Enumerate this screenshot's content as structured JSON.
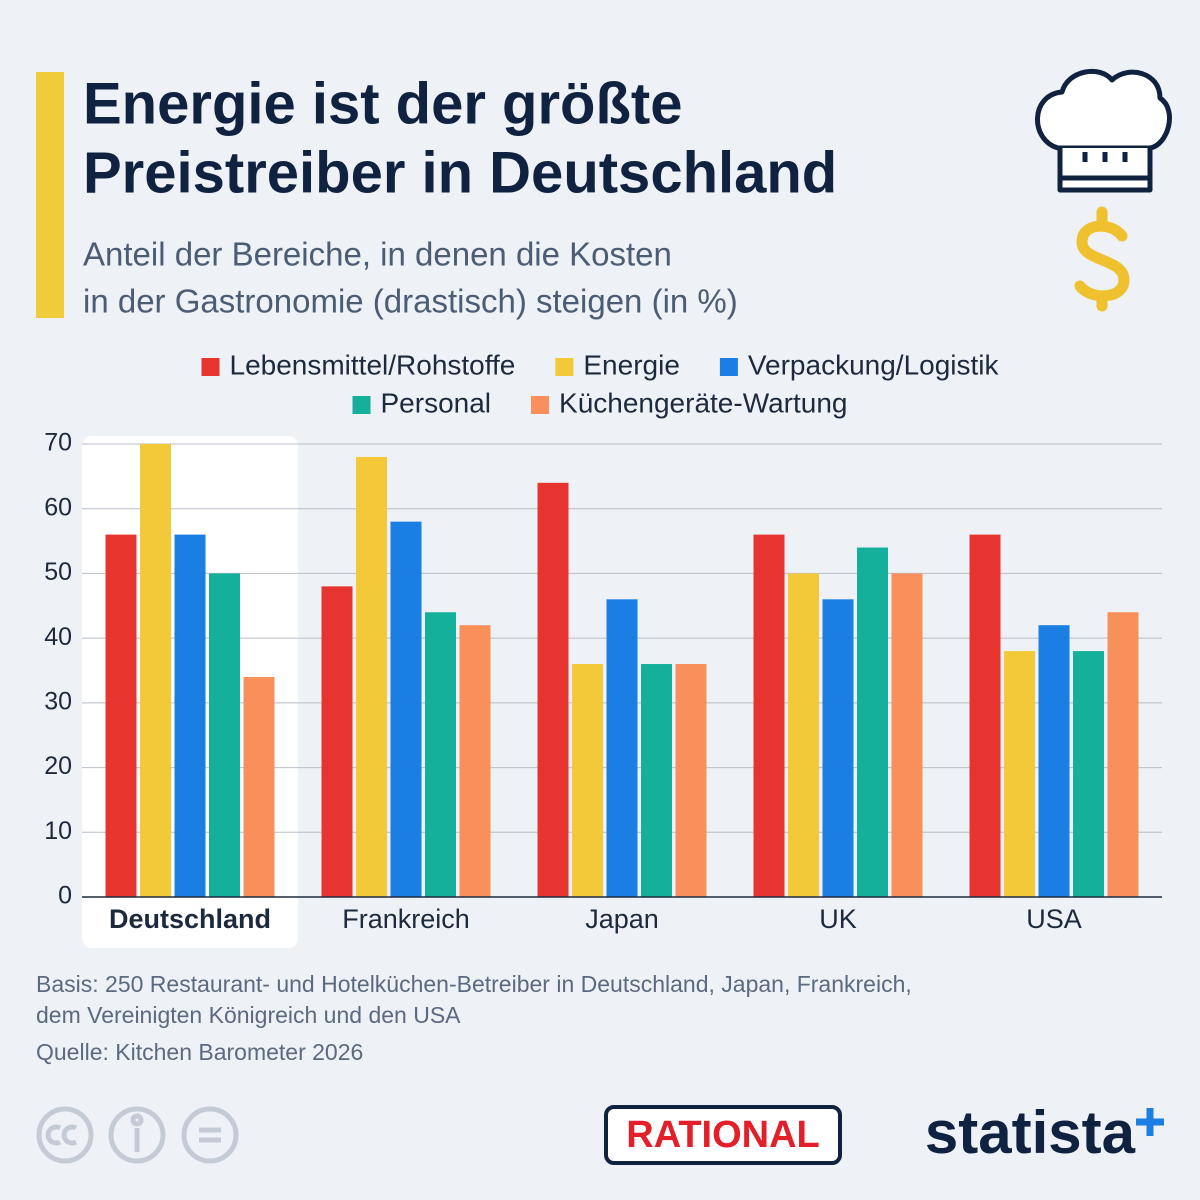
{
  "chart_data": {
    "type": "bar",
    "title": [
      "Energie ist der größte",
      "Preistreiber in Deutschland"
    ],
    "subtitle": [
      "Anteil der Bereiche, in denen die Kosten",
      "in der Gastronomie (drastisch) steigen (in %)"
    ],
    "categories": [
      "Deutschland",
      "Frankreich",
      "Japan",
      "UK",
      "USA"
    ],
    "highlight": "Deutschland",
    "series": [
      {
        "name": "Lebensmittel/Rohstoffe",
        "color": "#e8342e",
        "values": [
          56,
          48,
          64,
          56,
          56
        ]
      },
      {
        "name": "Energie",
        "color": "#f3c93a",
        "values": [
          70,
          68,
          36,
          50,
          38
        ]
      },
      {
        "name": "Verpackung/Logistik",
        "color": "#1a7ee2",
        "values": [
          56,
          58,
          46,
          46,
          42
        ]
      },
      {
        "name": "Personal",
        "color": "#15b09b",
        "values": [
          50,
          44,
          36,
          54,
          38
        ]
      },
      {
        "name": "Küchengeräte-Wartung",
        "color": "#f98f5b",
        "values": [
          34,
          42,
          36,
          50,
          44
        ]
      }
    ],
    "ylim": [
      0,
      70
    ],
    "yticks": [
      0,
      10,
      20,
      30,
      40,
      50,
      60,
      70
    ],
    "grid": true,
    "note": [
      "Basis: 250 Restaurant- und Hotelküchen-Betreiber in Deutschland, Japan, Frankreich,",
      "dem Vereinigten Königreich und den USA"
    ],
    "source": "Quelle: Kitchen Barometer 2026",
    "partner": "RATIONAL",
    "brand": "statista"
  }
}
